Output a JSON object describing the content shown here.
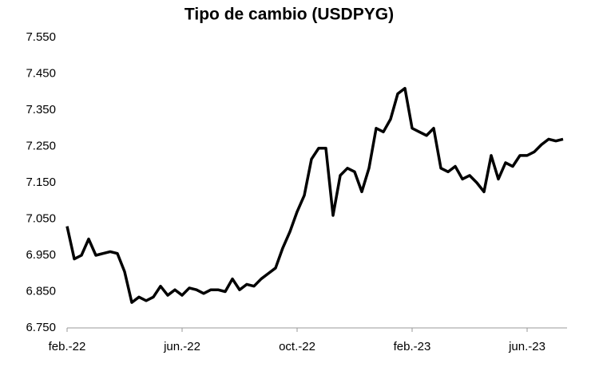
{
  "chart_data": {
    "type": "line",
    "title": "Tipo de cambio (USDPYG)",
    "categories": [
      "feb.-22",
      null,
      null,
      null,
      null,
      null,
      null,
      null,
      null,
      null,
      null,
      null,
      null,
      null,
      null,
      null,
      "jun.-22",
      null,
      null,
      null,
      null,
      null,
      null,
      null,
      null,
      null,
      null,
      null,
      null,
      null,
      null,
      null,
      "oct.-22",
      null,
      null,
      null,
      null,
      null,
      null,
      null,
      null,
      null,
      null,
      null,
      null,
      null,
      null,
      null,
      "feb.-23",
      null,
      null,
      null,
      null,
      null,
      null,
      null,
      null,
      null,
      null,
      null,
      null,
      null,
      null,
      null,
      "jun.-23",
      null,
      null,
      null,
      null,
      null
    ],
    "series": [
      {
        "name": "USDPYG",
        "color": "#000000",
        "values": [
          7030,
          6940,
          6950,
          6995,
          6950,
          6955,
          6960,
          6955,
          6905,
          6820,
          6835,
          6825,
          6835,
          6865,
          6840,
          6855,
          6840,
          6860,
          6855,
          6845,
          6855,
          6855,
          6850,
          6885,
          6855,
          6870,
          6865,
          6885,
          6900,
          6915,
          6970,
          7015,
          7070,
          7115,
          7215,
          7245,
          7245,
          7060,
          7170,
          7190,
          7180,
          7125,
          7190,
          7300,
          7290,
          7325,
          7395,
          7410,
          7300,
          7290,
          7280,
          7300,
          7190,
          7180,
          7195,
          7160,
          7170,
          7150,
          7125,
          7225,
          7160,
          7205,
          7195,
          7225,
          7225,
          7235,
          7255,
          7270,
          7265,
          7270
        ]
      }
    ],
    "ylim": [
      6750,
      7550
    ],
    "yticks": [
      {
        "value": 6750,
        "label": "6.750"
      },
      {
        "value": 6850,
        "label": "6.850"
      },
      {
        "value": 6950,
        "label": "6.950"
      },
      {
        "value": 7050,
        "label": "7.050"
      },
      {
        "value": 7150,
        "label": "7.150"
      },
      {
        "value": 7250,
        "label": "7.250"
      },
      {
        "value": 7350,
        "label": "7.350"
      },
      {
        "value": 7450,
        "label": "7.450"
      },
      {
        "value": 7550,
        "label": "7.550"
      }
    ]
  }
}
